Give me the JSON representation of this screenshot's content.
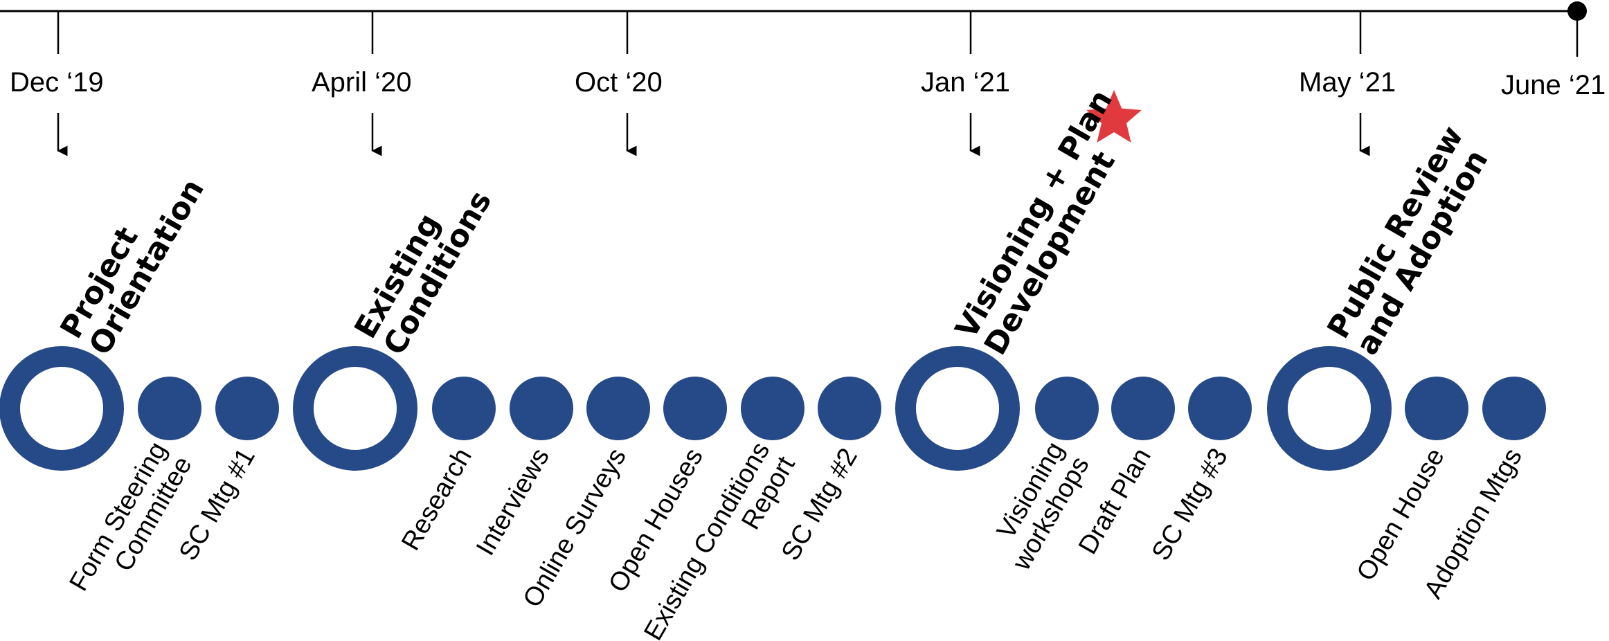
{
  "milestones": [
    {
      "label": "Dec ‘19"
    },
    {
      "label": "April ‘20"
    },
    {
      "label": "Oct ‘20"
    },
    {
      "label": "Jan ‘21"
    },
    {
      "label": "May ‘21"
    },
    {
      "label": "June ‘21"
    }
  ],
  "phases": [
    {
      "lines": [
        "Project",
        "Orientation"
      ]
    },
    {
      "lines": [
        "Existing",
        "Conditions"
      ]
    },
    {
      "lines": [
        "Visioning + Plan",
        "Development"
      ]
    },
    {
      "lines": [
        "Public Review",
        "and Adoption"
      ]
    }
  ],
  "tasks": [
    {
      "lines": [
        "Form Steering",
        "Committee"
      ]
    },
    {
      "lines": [
        "SC Mtg #1"
      ]
    },
    {
      "lines": [
        "Research"
      ]
    },
    {
      "lines": [
        "Interviews"
      ]
    },
    {
      "lines": [
        "Online Surveys"
      ]
    },
    {
      "lines": [
        "Open Houses"
      ]
    },
    {
      "lines": [
        "Existing Conditions",
        "Report"
      ]
    },
    {
      "lines": [
        "SC Mtg #2"
      ]
    },
    {
      "lines": [
        "Visioning",
        "workshops"
      ]
    },
    {
      "lines": [
        "Draft Plan"
      ]
    },
    {
      "lines": [
        "SC Mtg #3"
      ]
    },
    {
      "lines": [
        "Open House"
      ]
    },
    {
      "lines": [
        "Adoption Mtgs"
      ]
    }
  ],
  "current_marker_icon": "star-icon",
  "colors": {
    "node_fill": "#264a87",
    "timeline_line": "#000000",
    "current_marker": "#e03a3e"
  }
}
